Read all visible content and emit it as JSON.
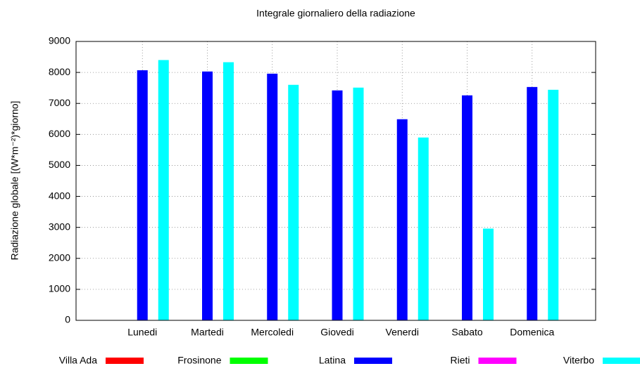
{
  "chart_data": {
    "type": "bar",
    "title": "Integrale giornaliero della radiazione",
    "y_label": "Radiazione globale [(W*m⁻²)*giorno]",
    "categories": [
      "Lunedi",
      "Martedi",
      "Mercoledi",
      "Giovedi",
      "Venerdi",
      "Sabato",
      "Domenica"
    ],
    "series": [
      {
        "name": "Villa Ada",
        "color": "#ff0000",
        "values": [
          null,
          null,
          null,
          null,
          null,
          null,
          null
        ]
      },
      {
        "name": "Frosinone",
        "color": "#00ff00",
        "values": [
          null,
          null,
          null,
          null,
          null,
          null,
          null
        ]
      },
      {
        "name": "Latina",
        "color": "#0000ff",
        "values": [
          8070,
          8030,
          7960,
          7420,
          6490,
          7260,
          7530
        ]
      },
      {
        "name": "Rieti",
        "color": "#ff00ff",
        "values": [
          null,
          null,
          null,
          null,
          null,
          null,
          null
        ]
      },
      {
        "name": "Viterbo",
        "color": "#00ffff",
        "values": [
          8400,
          8330,
          7600,
          7510,
          5900,
          2960,
          7440
        ]
      }
    ],
    "ylim": [
      0,
      9000
    ],
    "yticks": [
      0,
      1000,
      2000,
      3000,
      4000,
      5000,
      6000,
      7000,
      8000,
      9000
    ],
    "grid": true,
    "legend": "bottom"
  }
}
